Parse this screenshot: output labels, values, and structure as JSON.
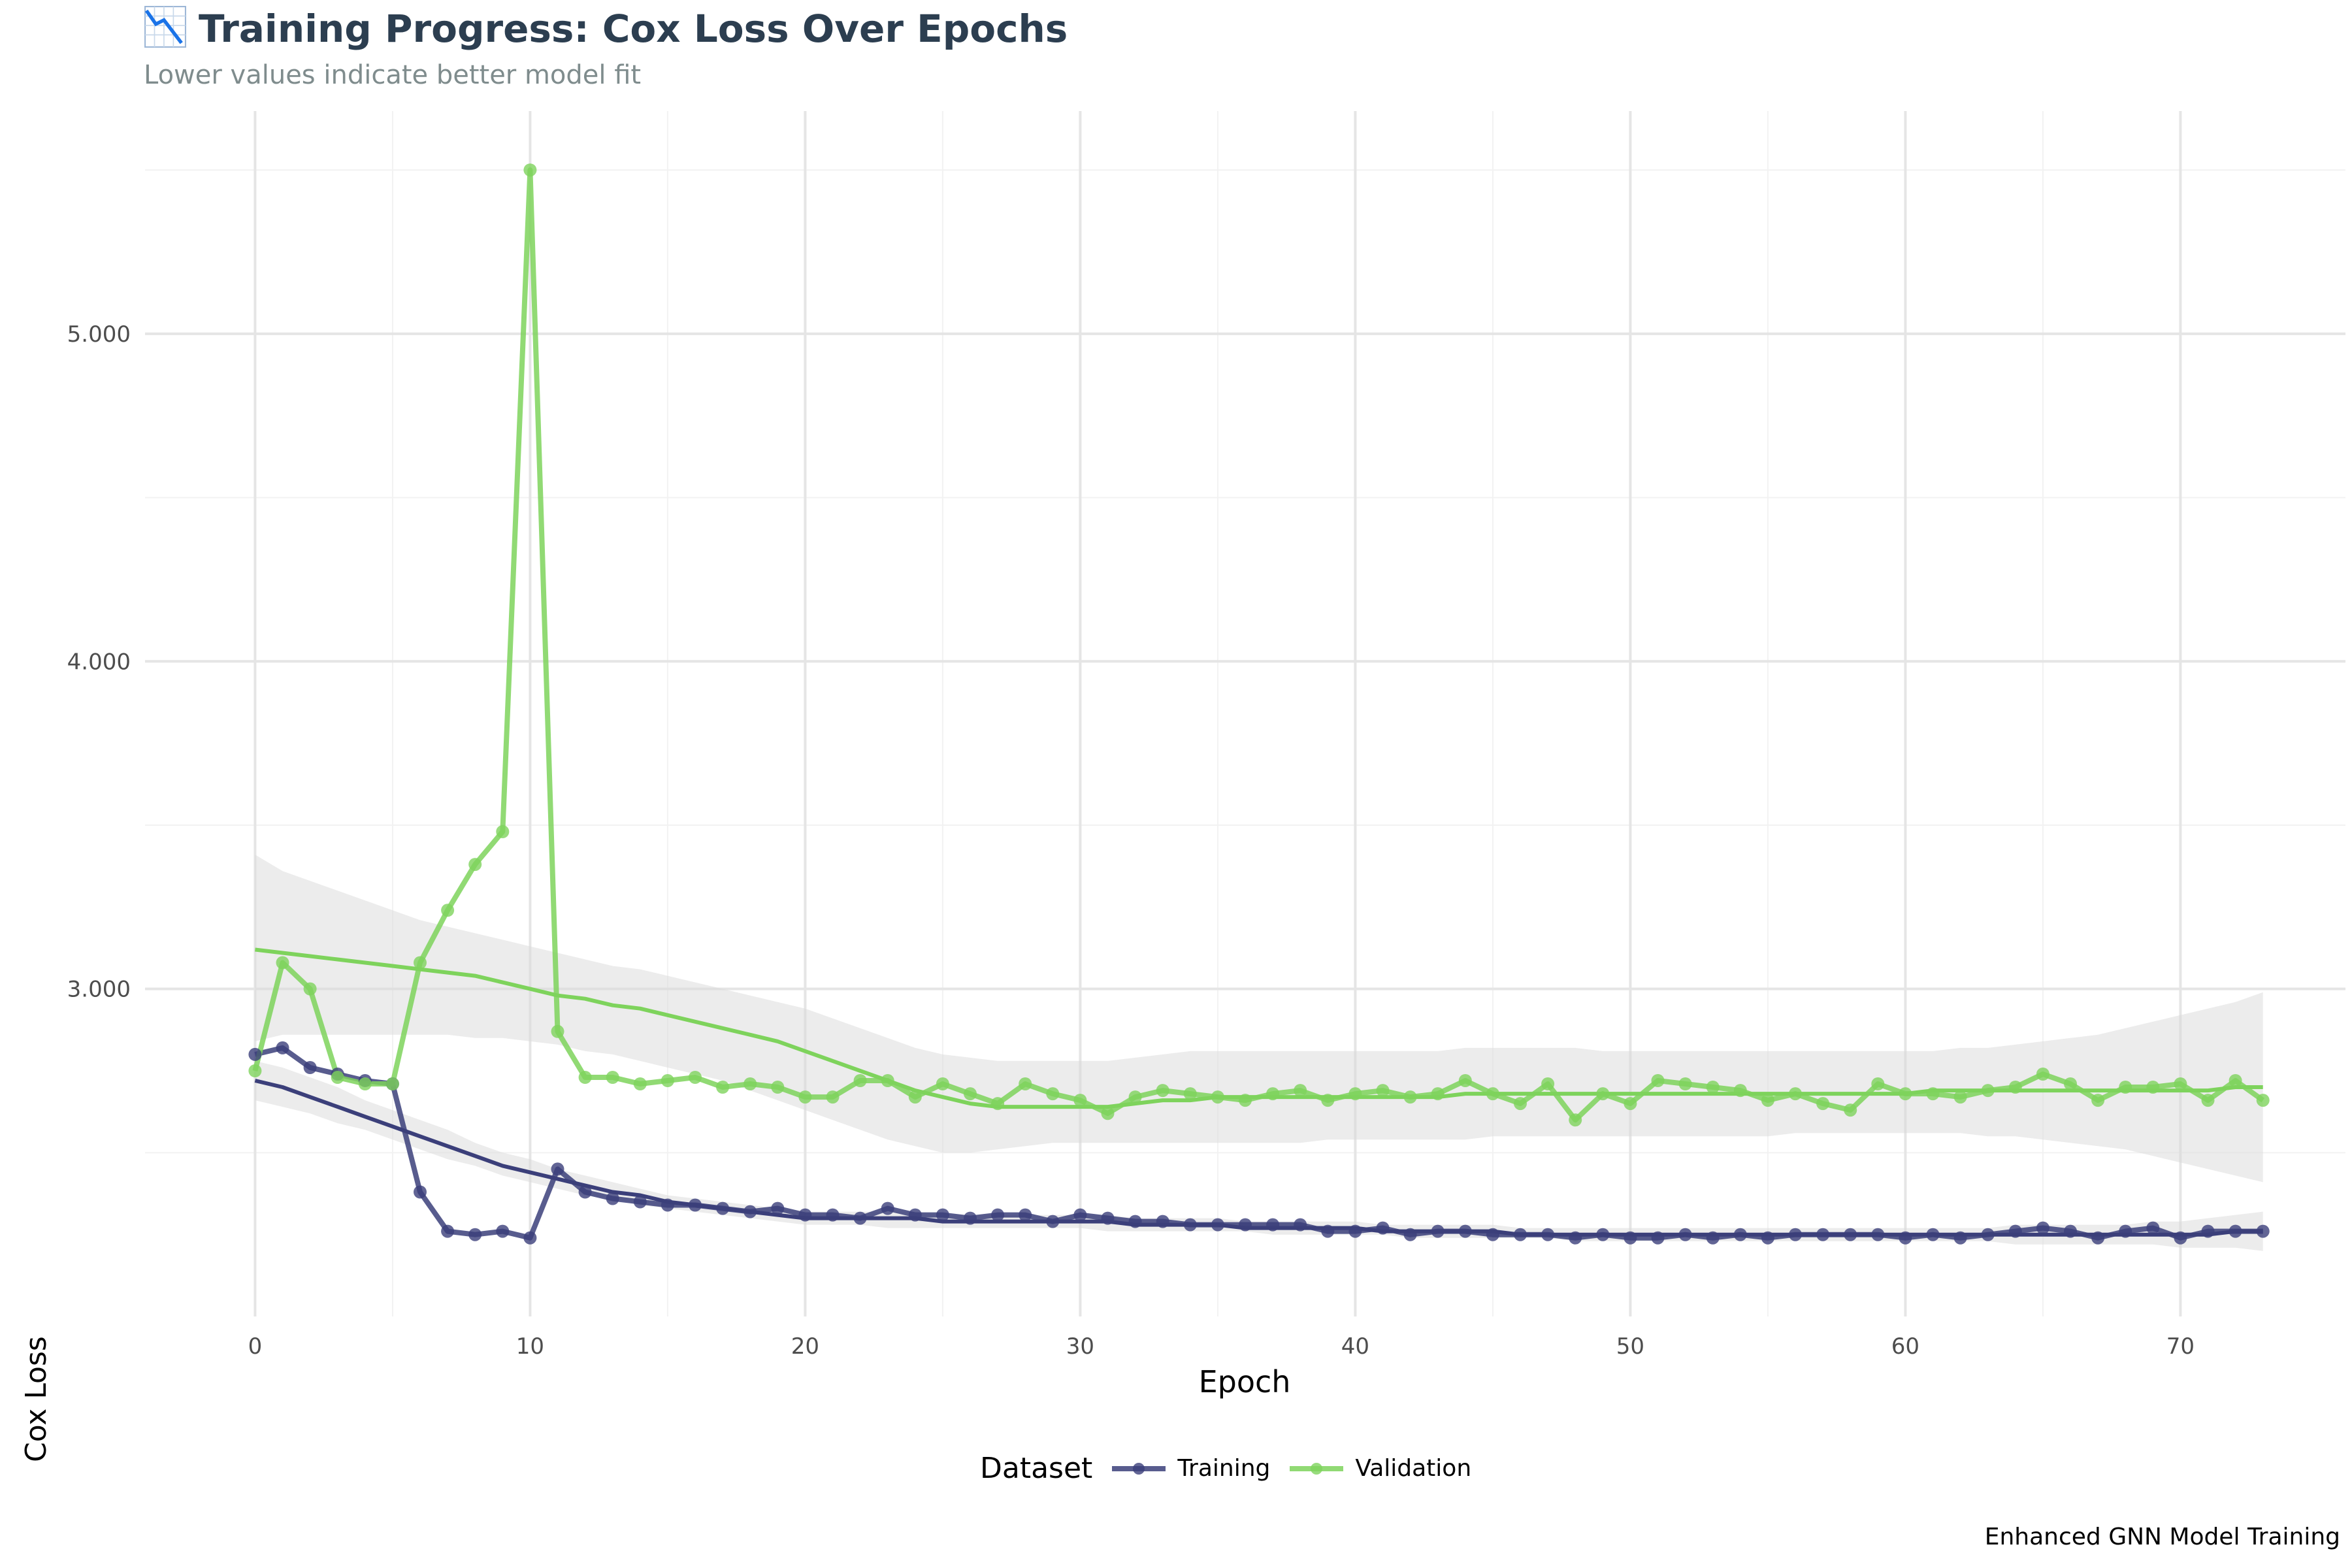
{
  "title": "Training Progress: Cox Loss Over Epochs",
  "title_icon": "chart-decreasing-icon",
  "subtitle": "Lower values indicate better model fit",
  "caption": "Enhanced GNN Model Training",
  "legend": {
    "title": "Dataset",
    "items": [
      {
        "label": "Training",
        "color": "#3b3f7a"
      },
      {
        "label": "Validation",
        "color": "#7ed35c"
      }
    ]
  },
  "chart_data": {
    "type": "line",
    "xlabel": "Epoch",
    "ylabel": "Cox Loss",
    "xlim": [
      -4,
      76
    ],
    "ylim": [
      2.0,
      5.68
    ],
    "x_ticks": [
      0,
      10,
      20,
      30,
      40,
      50,
      60,
      70
    ],
    "y_ticks": [
      3.0,
      4.0,
      5.0
    ],
    "y_tick_labels": [
      "3.000",
      "4.000",
      "5.000"
    ],
    "grid": true,
    "legend_position": "bottom",
    "x": [
      0,
      1,
      2,
      3,
      4,
      5,
      6,
      7,
      8,
      9,
      10,
      11,
      12,
      13,
      14,
      15,
      16,
      17,
      18,
      19,
      20,
      21,
      22,
      23,
      24,
      25,
      26,
      27,
      28,
      29,
      30,
      31,
      32,
      33,
      34,
      35,
      36,
      37,
      38,
      39,
      40,
      41,
      42,
      43,
      44,
      45,
      46,
      47,
      48,
      49,
      50,
      51,
      52,
      53,
      54,
      55,
      56,
      57,
      58,
      59,
      60,
      61,
      62,
      63,
      64,
      65,
      66,
      67,
      68,
      69,
      70,
      71,
      72,
      73
    ],
    "series": [
      {
        "name": "Training",
        "color": "#3b3f7a",
        "values": [
          2.8,
          2.82,
          2.76,
          2.74,
          2.72,
          2.71,
          2.38,
          2.26,
          2.25,
          2.26,
          2.24,
          2.45,
          2.38,
          2.36,
          2.35,
          2.34,
          2.34,
          2.33,
          2.32,
          2.33,
          2.31,
          2.31,
          2.3,
          2.33,
          2.31,
          2.31,
          2.3,
          2.31,
          2.31,
          2.29,
          2.31,
          2.3,
          2.29,
          2.29,
          2.28,
          2.28,
          2.28,
          2.28,
          2.28,
          2.26,
          2.26,
          2.27,
          2.25,
          2.26,
          2.26,
          2.25,
          2.25,
          2.25,
          2.24,
          2.25,
          2.24,
          2.24,
          2.25,
          2.24,
          2.25,
          2.24,
          2.25,
          2.25,
          2.25,
          2.25,
          2.24,
          2.25,
          2.24,
          2.25,
          2.26,
          2.27,
          2.26,
          2.24,
          2.26,
          2.27,
          2.24,
          2.26,
          2.26,
          2.26
        ],
        "smooth": [
          2.72,
          2.7,
          2.67,
          2.64,
          2.61,
          2.58,
          2.55,
          2.52,
          2.49,
          2.46,
          2.44,
          2.42,
          2.4,
          2.38,
          2.37,
          2.35,
          2.34,
          2.33,
          2.32,
          2.31,
          2.3,
          2.3,
          2.3,
          2.3,
          2.3,
          2.29,
          2.29,
          2.29,
          2.29,
          2.29,
          2.29,
          2.29,
          2.28,
          2.28,
          2.28,
          2.28,
          2.27,
          2.27,
          2.27,
          2.27,
          2.27,
          2.26,
          2.26,
          2.26,
          2.26,
          2.26,
          2.25,
          2.25,
          2.25,
          2.25,
          2.25,
          2.25,
          2.25,
          2.25,
          2.25,
          2.25,
          2.25,
          2.25,
          2.25,
          2.25,
          2.25,
          2.25,
          2.25,
          2.25,
          2.25,
          2.25,
          2.25,
          2.25,
          2.25,
          2.25,
          2.25,
          2.25,
          2.26,
          2.26
        ],
        "ci_low": [
          2.66,
          2.64,
          2.62,
          2.59,
          2.57,
          2.54,
          2.51,
          2.48,
          2.46,
          2.43,
          2.41,
          2.39,
          2.37,
          2.36,
          2.34,
          2.33,
          2.32,
          2.31,
          2.3,
          2.29,
          2.28,
          2.28,
          2.28,
          2.27,
          2.27,
          2.27,
          2.27,
          2.27,
          2.27,
          2.27,
          2.27,
          2.26,
          2.26,
          2.26,
          2.26,
          2.26,
          2.26,
          2.25,
          2.25,
          2.25,
          2.25,
          2.25,
          2.24,
          2.24,
          2.24,
          2.24,
          2.24,
          2.24,
          2.23,
          2.23,
          2.23,
          2.23,
          2.23,
          2.23,
          2.23,
          2.23,
          2.23,
          2.23,
          2.23,
          2.23,
          2.23,
          2.23,
          2.23,
          2.23,
          2.22,
          2.22,
          2.22,
          2.22,
          2.22,
          2.22,
          2.21,
          2.21,
          2.21,
          2.2
        ],
        "ci_high": [
          2.78,
          2.76,
          2.73,
          2.7,
          2.66,
          2.63,
          2.6,
          2.57,
          2.53,
          2.5,
          2.48,
          2.45,
          2.43,
          2.41,
          2.39,
          2.37,
          2.36,
          2.35,
          2.34,
          2.33,
          2.32,
          2.32,
          2.32,
          2.32,
          2.32,
          2.31,
          2.31,
          2.31,
          2.31,
          2.31,
          2.31,
          2.31,
          2.3,
          2.3,
          2.3,
          2.3,
          2.29,
          2.29,
          2.29,
          2.29,
          2.29,
          2.28,
          2.28,
          2.28,
          2.28,
          2.28,
          2.27,
          2.27,
          2.27,
          2.27,
          2.27,
          2.27,
          2.27,
          2.27,
          2.27,
          2.27,
          2.27,
          2.27,
          2.27,
          2.27,
          2.27,
          2.27,
          2.27,
          2.27,
          2.28,
          2.28,
          2.28,
          2.28,
          2.28,
          2.29,
          2.29,
          2.3,
          2.31,
          2.32
        ]
      },
      {
        "name": "Validation",
        "color": "#7ed35c",
        "values": [
          2.75,
          3.08,
          3.0,
          2.73,
          2.71,
          2.71,
          3.08,
          3.24,
          3.38,
          3.48,
          5.5,
          2.87,
          2.73,
          2.73,
          2.71,
          2.72,
          2.73,
          2.7,
          2.71,
          2.7,
          2.67,
          2.67,
          2.72,
          2.72,
          2.67,
          2.71,
          2.68,
          2.65,
          2.71,
          2.68,
          2.66,
          2.62,
          2.67,
          2.69,
          2.68,
          2.67,
          2.66,
          2.68,
          2.69,
          2.66,
          2.68,
          2.69,
          2.67,
          2.68,
          2.72,
          2.68,
          2.65,
          2.71,
          2.6,
          2.68,
          2.65,
          2.72,
          2.71,
          2.7,
          2.69,
          2.66,
          2.68,
          2.65,
          2.63,
          2.71,
          2.68,
          2.68,
          2.67,
          2.69,
          2.7,
          2.74,
          2.71,
          2.66,
          2.7,
          2.7,
          2.71,
          2.66,
          2.72,
          2.66
        ],
        "smooth": [
          3.12,
          3.11,
          3.1,
          3.09,
          3.08,
          3.07,
          3.06,
          3.05,
          3.04,
          3.02,
          3.0,
          2.98,
          2.97,
          2.95,
          2.94,
          2.92,
          2.9,
          2.88,
          2.86,
          2.84,
          2.81,
          2.78,
          2.75,
          2.72,
          2.69,
          2.67,
          2.65,
          2.64,
          2.64,
          2.64,
          2.64,
          2.64,
          2.65,
          2.66,
          2.66,
          2.67,
          2.67,
          2.67,
          2.67,
          2.67,
          2.67,
          2.67,
          2.67,
          2.67,
          2.68,
          2.68,
          2.68,
          2.68,
          2.68,
          2.68,
          2.68,
          2.68,
          2.68,
          2.68,
          2.68,
          2.68,
          2.68,
          2.68,
          2.68,
          2.68,
          2.68,
          2.69,
          2.69,
          2.69,
          2.69,
          2.69,
          2.69,
          2.69,
          2.69,
          2.69,
          2.69,
          2.69,
          2.7,
          2.7
        ],
        "ci_low": [
          2.84,
          2.86,
          2.86,
          2.86,
          2.86,
          2.86,
          2.86,
          2.86,
          2.85,
          2.85,
          2.84,
          2.83,
          2.81,
          2.8,
          2.78,
          2.76,
          2.74,
          2.72,
          2.69,
          2.66,
          2.63,
          2.6,
          2.57,
          2.54,
          2.52,
          2.5,
          2.5,
          2.51,
          2.52,
          2.53,
          2.53,
          2.53,
          2.53,
          2.53,
          2.53,
          2.53,
          2.53,
          2.53,
          2.53,
          2.54,
          2.54,
          2.54,
          2.54,
          2.54,
          2.54,
          2.55,
          2.55,
          2.55,
          2.55,
          2.55,
          2.55,
          2.55,
          2.55,
          2.55,
          2.55,
          2.55,
          2.56,
          2.56,
          2.56,
          2.56,
          2.56,
          2.56,
          2.56,
          2.55,
          2.55,
          2.54,
          2.53,
          2.52,
          2.51,
          2.49,
          2.47,
          2.45,
          2.43,
          2.41
        ],
        "ci_high": [
          3.41,
          3.36,
          3.33,
          3.3,
          3.27,
          3.24,
          3.21,
          3.19,
          3.17,
          3.15,
          3.13,
          3.11,
          3.09,
          3.07,
          3.06,
          3.04,
          3.02,
          3.0,
          2.98,
          2.96,
          2.94,
          2.91,
          2.88,
          2.85,
          2.82,
          2.8,
          2.79,
          2.78,
          2.78,
          2.78,
          2.78,
          2.78,
          2.79,
          2.8,
          2.81,
          2.81,
          2.81,
          2.81,
          2.81,
          2.81,
          2.81,
          2.81,
          2.81,
          2.81,
          2.82,
          2.82,
          2.82,
          2.82,
          2.82,
          2.81,
          2.81,
          2.81,
          2.81,
          2.81,
          2.81,
          2.81,
          2.81,
          2.81,
          2.81,
          2.81,
          2.81,
          2.81,
          2.82,
          2.82,
          2.83,
          2.84,
          2.85,
          2.86,
          2.88,
          2.9,
          2.92,
          2.94,
          2.96,
          2.99
        ]
      }
    ]
  }
}
